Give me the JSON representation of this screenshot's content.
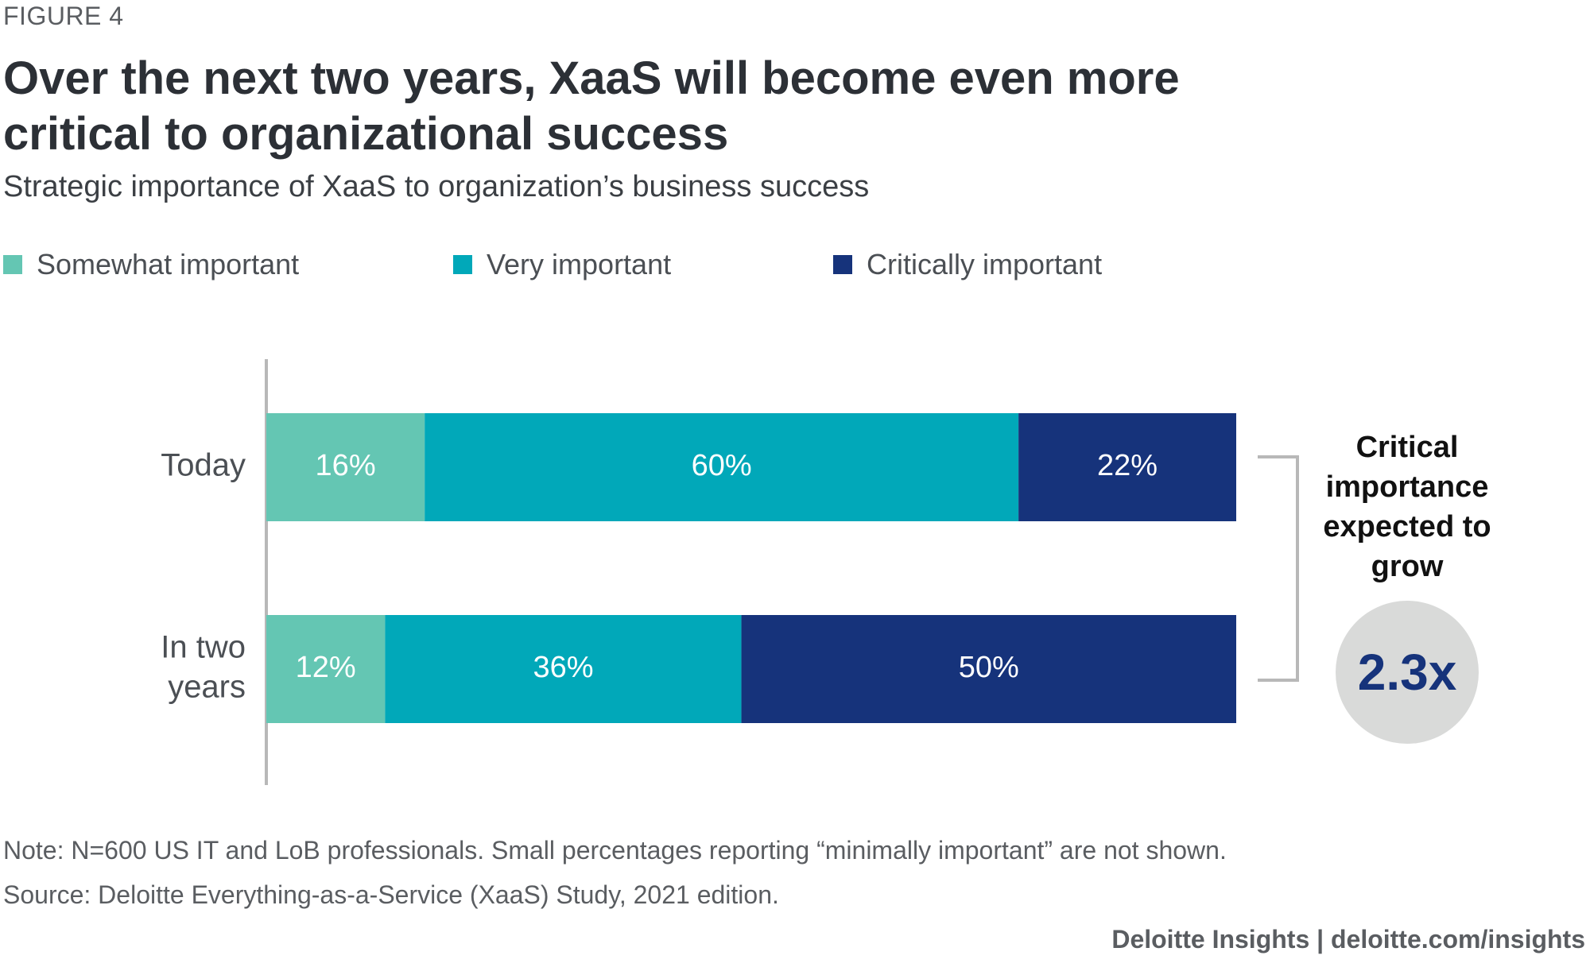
{
  "figure_label": "FIGURE 4",
  "note": "Note: N=600 US IT and LoB professionals. Small percentages reporting “minimally important” are not shown.",
  "source": "Source: Deloitte Everything-as-a-Service (XaaS) Study, 2021 edition.",
  "brand": "Deloitte Insights | deloitte.com/insights",
  "annotation": {
    "text": "Critical importance expected to grow",
    "value": "2.3x"
  },
  "colors": {
    "somewhat": "#64c6b3",
    "very": "#01a8b9",
    "critically": "#16337b"
  },
  "chart_data": {
    "type": "bar",
    "orientation": "horizontal",
    "stacked": true,
    "title": "Over the next two years, XaaS will become even more critical to organizational success",
    "subtitle": "Strategic importance of XaaS to organization’s business success",
    "categories": [
      "Today",
      "In two years"
    ],
    "series": [
      {
        "name": "Somewhat important",
        "values": [
          16,
          12
        ],
        "labels": [
          "16%",
          "12%"
        ]
      },
      {
        "name": "Very important",
        "values": [
          60,
          36
        ],
        "labels": [
          "60%",
          "36%"
        ]
      },
      {
        "name": "Critically important",
        "values": [
          22,
          50
        ],
        "labels": [
          "22%",
          "50%"
        ]
      }
    ],
    "xlim": [
      0,
      98
    ],
    "legend_position": "top",
    "grid": false
  }
}
